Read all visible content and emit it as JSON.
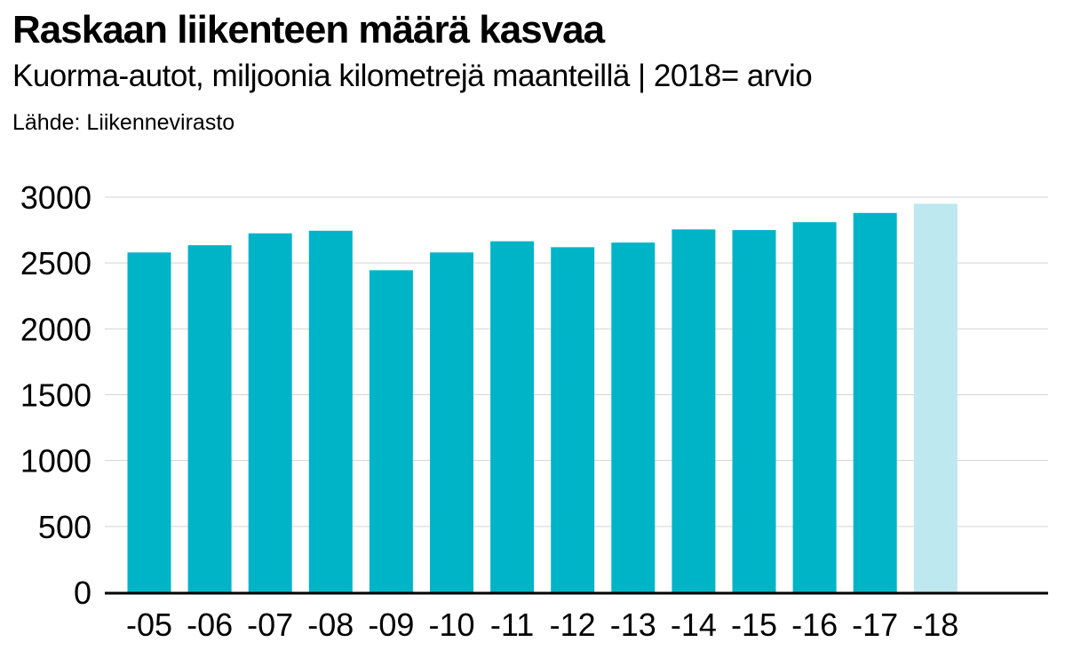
{
  "header": {
    "title": "Raskaan liikenteen määrä kasvaa",
    "subtitle": "Kuorma-autot, miljoonia kilometrejä maanteillä | 2018= arvio",
    "source": "Lähde: Liikennevirasto"
  },
  "colors": {
    "bar": "#00b4c8",
    "estimate_bar": "#bde8ef",
    "grid": "#d4d4d4",
    "axis": "#000000"
  },
  "chart_data": {
    "type": "bar",
    "categories": [
      "-05",
      "-06",
      "-07",
      "-08",
      "-09",
      "-10",
      "-11",
      "-12",
      "-13",
      "-14",
      "-15",
      "-16",
      "-17",
      "-18"
    ],
    "values": [
      2580,
      2635,
      2725,
      2745,
      2445,
      2580,
      2665,
      2620,
      2655,
      2755,
      2750,
      2810,
      2880,
      2950
    ],
    "estimate_categories": [
      "-18"
    ],
    "title": "Raskaan liikenteen määrä kasvaa",
    "ylim": [
      0,
      3000
    ],
    "yticks": [
      0,
      500,
      1000,
      1500,
      2000,
      2500,
      3000
    ],
    "grid": true
  }
}
